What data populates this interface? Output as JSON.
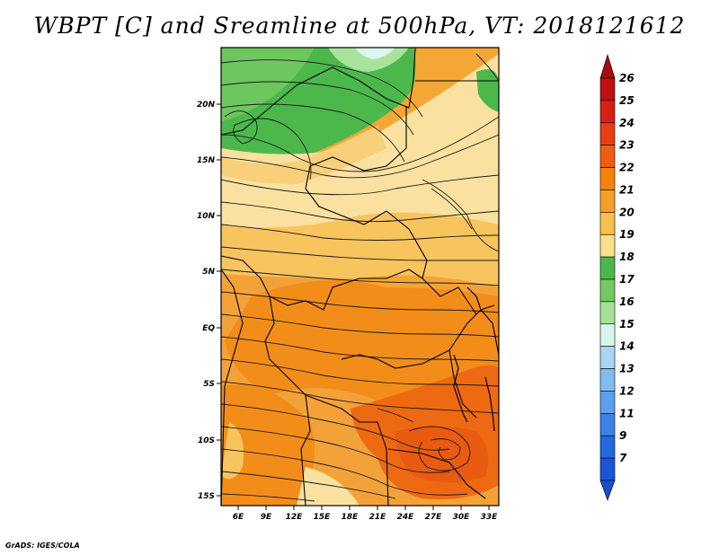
{
  "title": "WBPT [C] and Sreamline at 500hPa, VT: 2018121612",
  "credit": "GrADS: IGES/COLA",
  "map": {
    "lon_labels": [
      "6E",
      "9E",
      "12E",
      "15E",
      "18E",
      "21E",
      "24E",
      "27E",
      "30E",
      "33E"
    ],
    "lat_labels": [
      "20N",
      "15N",
      "10N",
      "5N",
      "EQ",
      "5S",
      "10S",
      "15S"
    ],
    "variable": "WBPT [C]",
    "level": "500hPa",
    "valid_time": "2018121612"
  },
  "colorbar": {
    "labels": [
      "26",
      "25",
      "24",
      "23",
      "22",
      "21",
      "20",
      "19",
      "18",
      "17",
      "16",
      "15",
      "14",
      "13",
      "12",
      "11",
      "9",
      "7"
    ],
    "colors": [
      "#c01010",
      "#d42018",
      "#e83e14",
      "#f05d10",
      "#f4830c",
      "#f59f28",
      "#f8c04c",
      "#fbe08a",
      "#4cb84c",
      "#70cc60",
      "#a4e096",
      "#d7f7ec",
      "#a9d6f2",
      "#82bbf0",
      "#5b9ff0",
      "#3a82ea",
      "#2268e0",
      "#1b55d8"
    ],
    "top_cap_color": "#a80c0c",
    "bottom_cap_color": "#1a4fcc"
  }
}
